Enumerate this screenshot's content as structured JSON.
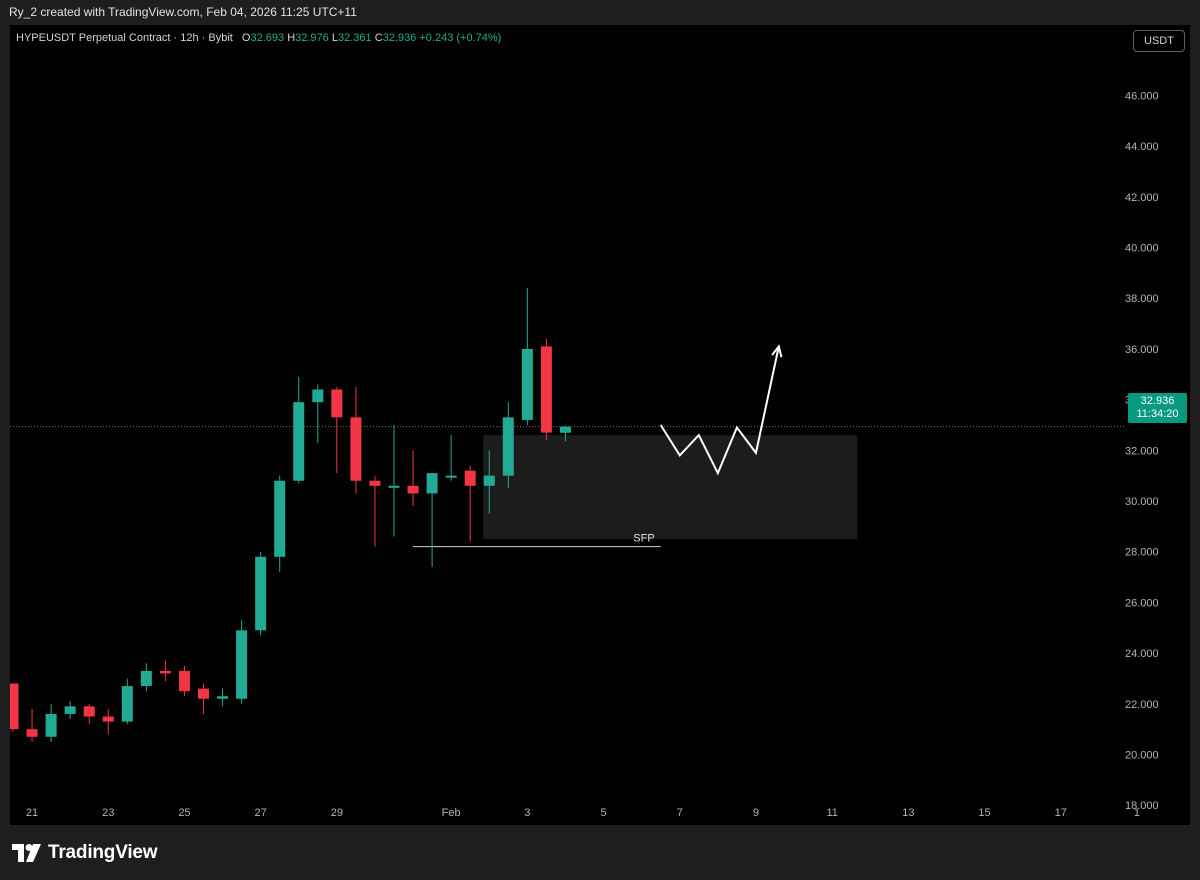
{
  "header": {
    "created_by": "Ry_2 created with TradingView.com, Feb 04, 2026 11:25 UTC+11"
  },
  "legend": {
    "symbol": "HYPEUSDT Perpetual Contract · 12h · Bybit",
    "o_label": "O",
    "o_value": "32.693",
    "h_label": "H",
    "h_value": "32.976",
    "l_label": "L",
    "l_value": "32.361",
    "c_label": "C",
    "c_value": "32.936",
    "change": "+0.243 (+0.74%)"
  },
  "currency_button": "USDT",
  "price_tag": {
    "price": "32.936",
    "countdown": "11:34:20"
  },
  "logo": {
    "icon": "tradingview-logo-icon",
    "text": "TradingView"
  },
  "colors": {
    "up": "#22ab94",
    "down": "#f23645",
    "background": "#000000",
    "accent": "#089981"
  },
  "chart_data": {
    "type": "candlestick",
    "symbol": "HYPEUSDT",
    "interval": "12h",
    "last_price": 32.936,
    "ylim": [
      17,
      47.2
    ],
    "y_ticks": [
      "46.000",
      "44.000",
      "42.000",
      "40.000",
      "38.000",
      "36.000",
      "34.000",
      "32.000",
      "30.000",
      "28.000",
      "26.000",
      "24.000",
      "22.000",
      "20.000",
      "18.000"
    ],
    "x_ticks": [
      "21",
      "23",
      "25",
      "27",
      "29",
      "Feb",
      "3",
      "5",
      "7",
      "9",
      "11",
      "13",
      "15",
      "17",
      "1"
    ],
    "x_tick_bars": [
      1,
      5,
      9,
      13,
      17,
      23,
      27,
      31,
      35,
      39,
      43,
      47,
      51,
      55,
      59
    ],
    "candles": [
      {
        "o": 22.8,
        "h": 22.8,
        "l": 20.9,
        "c": 21.0
      },
      {
        "o": 21.0,
        "h": 21.8,
        "l": 20.5,
        "c": 20.7
      },
      {
        "o": 20.7,
        "h": 22.0,
        "l": 20.5,
        "c": 21.6
      },
      {
        "o": 21.6,
        "h": 22.1,
        "l": 21.4,
        "c": 21.9
      },
      {
        "o": 21.9,
        "h": 22.0,
        "l": 21.2,
        "c": 21.5
      },
      {
        "o": 21.5,
        "h": 21.8,
        "l": 20.8,
        "c": 21.3
      },
      {
        "o": 21.3,
        "h": 23.0,
        "l": 21.2,
        "c": 22.7
      },
      {
        "o": 22.7,
        "h": 23.6,
        "l": 22.5,
        "c": 23.3
      },
      {
        "o": 23.3,
        "h": 23.7,
        "l": 22.9,
        "c": 23.2
      },
      {
        "o": 23.3,
        "h": 23.5,
        "l": 22.3,
        "c": 22.5
      },
      {
        "o": 22.6,
        "h": 22.8,
        "l": 21.6,
        "c": 22.2
      },
      {
        "o": 22.2,
        "h": 22.6,
        "l": 21.9,
        "c": 22.3
      },
      {
        "o": 22.2,
        "h": 25.3,
        "l": 22.0,
        "c": 24.9
      },
      {
        "o": 24.9,
        "h": 28.0,
        "l": 24.7,
        "c": 27.8
      },
      {
        "o": 27.8,
        "h": 31.0,
        "l": 27.2,
        "c": 30.8
      },
      {
        "o": 30.8,
        "h": 34.9,
        "l": 30.7,
        "c": 33.9
      },
      {
        "o": 33.9,
        "h": 34.6,
        "l": 32.3,
        "c": 34.4
      },
      {
        "o": 34.4,
        "h": 34.5,
        "l": 31.1,
        "c": 33.3
      },
      {
        "o": 33.3,
        "h": 34.5,
        "l": 30.3,
        "c": 30.8
      },
      {
        "o": 30.8,
        "h": 31.0,
        "l": 28.2,
        "c": 30.6
      },
      {
        "o": 30.6,
        "h": 33.0,
        "l": 28.6,
        "c": 30.6
      },
      {
        "o": 30.6,
        "h": 32.0,
        "l": 29.8,
        "c": 30.3
      },
      {
        "o": 30.3,
        "h": 31.1,
        "l": 27.4,
        "c": 31.1
      },
      {
        "o": 31.0,
        "h": 32.6,
        "l": 30.8,
        "c": 31.0
      },
      {
        "o": 31.2,
        "h": 31.4,
        "l": 28.4,
        "c": 30.6
      },
      {
        "o": 30.6,
        "h": 32.0,
        "l": 29.5,
        "c": 31.0
      },
      {
        "o": 31.0,
        "h": 33.9,
        "l": 30.5,
        "c": 33.3
      },
      {
        "o": 33.2,
        "h": 38.4,
        "l": 33.0,
        "c": 36.0
      },
      {
        "o": 36.1,
        "h": 36.4,
        "l": 32.4,
        "c": 32.7
      },
      {
        "o": 32.693,
        "h": 32.976,
        "l": 32.361,
        "c": 32.936
      }
    ],
    "zone": {
      "x_bars": [
        25,
        44
      ],
      "y": [
        28.5,
        32.6
      ]
    },
    "sfp_line": {
      "x_bars": [
        21,
        34
      ],
      "y": 28.2,
      "label": "SFP"
    },
    "projection_path": [
      [
        34.0,
        33.0
      ],
      [
        35.0,
        31.8
      ],
      [
        36.0,
        32.6
      ],
      [
        37.0,
        31.1
      ],
      [
        38.0,
        32.9
      ],
      [
        39.0,
        31.9
      ],
      [
        40.2,
        36.1
      ]
    ]
  }
}
